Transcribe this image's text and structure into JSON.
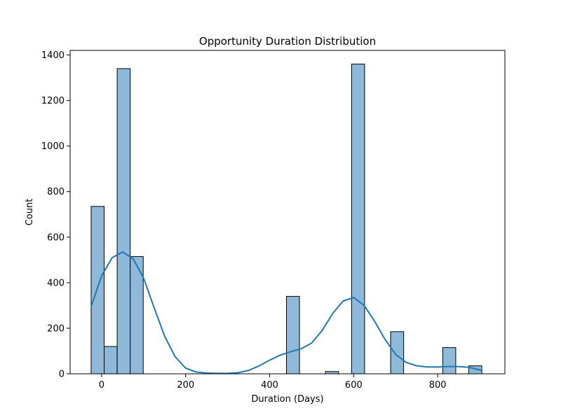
{
  "chart_data": {
    "type": "bar",
    "title": "Opportunity Duration Distribution",
    "xlabel": "Duration (Days)",
    "ylabel": "Count",
    "xlim": [
      -75,
      960
    ],
    "ylim": [
      0,
      1420
    ],
    "x_ticks": [
      0,
      200,
      400,
      600,
      800
    ],
    "y_ticks": [
      0,
      200,
      400,
      600,
      800,
      1000,
      1200,
      1400
    ],
    "grid": false,
    "bar_color": "#8fb9d9",
    "bar_edge_color": "#000000",
    "kde_color": "#1f77b4",
    "bins": [
      {
        "x0": -25,
        "x1": 6,
        "count": 735
      },
      {
        "x0": 6,
        "x1": 37,
        "count": 120
      },
      {
        "x0": 37,
        "x1": 68,
        "count": 1340
      },
      {
        "x0": 68,
        "x1": 99,
        "count": 515
      },
      {
        "x0": 99,
        "x1": 130,
        "count": 0
      },
      {
        "x0": 130,
        "x1": 161,
        "count": 0
      },
      {
        "x0": 161,
        "x1": 192,
        "count": 0
      },
      {
        "x0": 192,
        "x1": 223,
        "count": 0
      },
      {
        "x0": 223,
        "x1": 254,
        "count": 0
      },
      {
        "x0": 254,
        "x1": 285,
        "count": 0
      },
      {
        "x0": 285,
        "x1": 316,
        "count": 0
      },
      {
        "x0": 316,
        "x1": 347,
        "count": 0
      },
      {
        "x0": 347,
        "x1": 378,
        "count": 0
      },
      {
        "x0": 378,
        "x1": 409,
        "count": 0
      },
      {
        "x0": 409,
        "x1": 440,
        "count": 0
      },
      {
        "x0": 440,
        "x1": 471,
        "count": 340
      },
      {
        "x0": 471,
        "x1": 502,
        "count": 0
      },
      {
        "x0": 502,
        "x1": 533,
        "count": 0
      },
      {
        "x0": 533,
        "x1": 564,
        "count": 10
      },
      {
        "x0": 564,
        "x1": 595,
        "count": 0
      },
      {
        "x0": 595,
        "x1": 626,
        "count": 1360
      },
      {
        "x0": 626,
        "x1": 657,
        "count": 0
      },
      {
        "x0": 657,
        "x1": 688,
        "count": 0
      },
      {
        "x0": 688,
        "x1": 719,
        "count": 185
      },
      {
        "x0": 719,
        "x1": 750,
        "count": 0
      },
      {
        "x0": 750,
        "x1": 781,
        "count": 0
      },
      {
        "x0": 781,
        "x1": 812,
        "count": 0
      },
      {
        "x0": 812,
        "x1": 843,
        "count": 115
      },
      {
        "x0": 843,
        "x1": 874,
        "count": 0
      },
      {
        "x0": 874,
        "x1": 905,
        "count": 35
      }
    ],
    "kde": {
      "x": [
        -25,
        0,
        25,
        50,
        75,
        100,
        125,
        150,
        175,
        200,
        225,
        250,
        275,
        300,
        325,
        350,
        375,
        400,
        425,
        450,
        475,
        500,
        525,
        550,
        575,
        600,
        625,
        650,
        675,
        700,
        725,
        750,
        775,
        800,
        825,
        850,
        875,
        905
      ],
      "y": [
        295,
        430,
        510,
        535,
        505,
        420,
        290,
        165,
        75,
        25,
        8,
        3,
        2,
        2,
        5,
        15,
        35,
        60,
        82,
        97,
        110,
        135,
        190,
        265,
        320,
        335,
        300,
        230,
        150,
        85,
        50,
        35,
        30,
        30,
        32,
        32,
        28,
        15
      ]
    }
  }
}
